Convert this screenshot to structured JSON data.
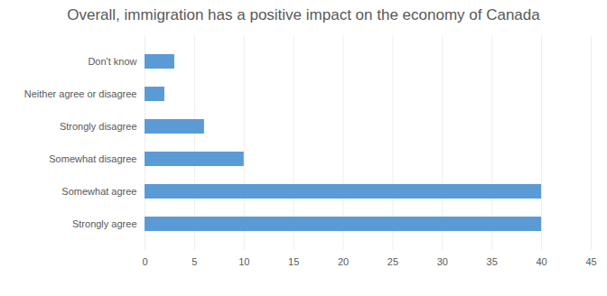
{
  "chart_data": {
    "type": "bar",
    "orientation": "horizontal",
    "title": "Overall, immigration has a positive impact on the economy of Canada",
    "categories": [
      "Don't know",
      "Neither agree or disagree",
      "Strongly disagree",
      "Somewhat disagree",
      "Somewhat agree",
      "Strongly agree"
    ],
    "values": [
      3,
      2,
      6,
      10,
      40,
      40
    ],
    "color": "#5b9bd5",
    "xlim": [
      0,
      45
    ],
    "xticks": [
      0,
      5,
      10,
      15,
      20,
      25,
      30,
      35,
      40,
      45
    ],
    "grid": true
  }
}
